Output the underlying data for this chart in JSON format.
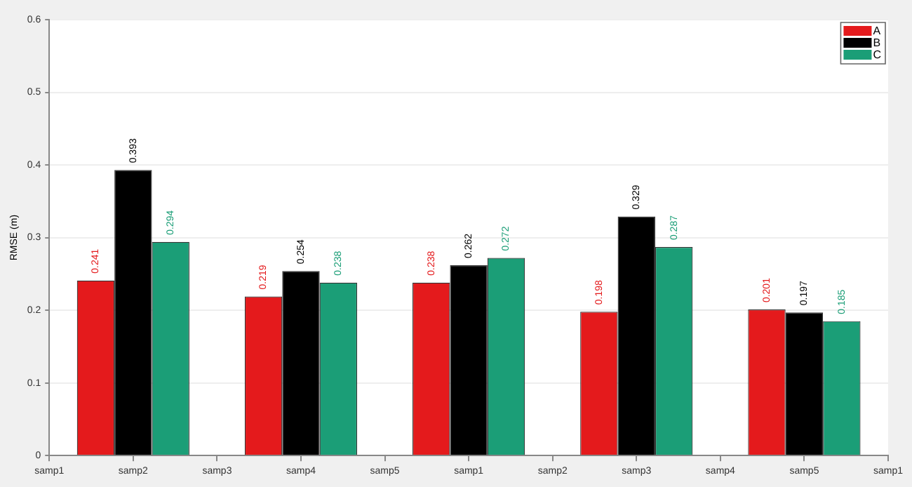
{
  "chart_data": {
    "type": "bar",
    "ylabel": "RMSE (m)",
    "categories": [
      "samp1",
      "samp2",
      "samp3",
      "samp4",
      "samp5",
      "samp1",
      "samp2",
      "samp3",
      "samp4",
      "samp5",
      "samp1"
    ],
    "series": [
      {
        "name": "A",
        "color": "#e41a1c",
        "values": [
          null,
          0.241,
          null,
          0.219,
          null,
          0.238,
          null,
          0.198,
          null,
          0.201,
          null
        ]
      },
      {
        "name": "B",
        "color": "#000000",
        "values": [
          null,
          0.393,
          null,
          0.254,
          null,
          0.262,
          null,
          0.329,
          null,
          0.197,
          null
        ]
      },
      {
        "name": "C",
        "color": "#1b9e77",
        "values": [
          null,
          0.294,
          null,
          0.238,
          null,
          0.272,
          null,
          0.287,
          null,
          0.185,
          null
        ]
      }
    ],
    "ylim": [
      0,
      0.6
    ],
    "yticks": [
      0,
      0.1,
      0.2,
      0.3,
      0.4,
      0.5,
      0.6
    ],
    "grid": "y",
    "legend": "top right",
    "data_labels": true
  }
}
